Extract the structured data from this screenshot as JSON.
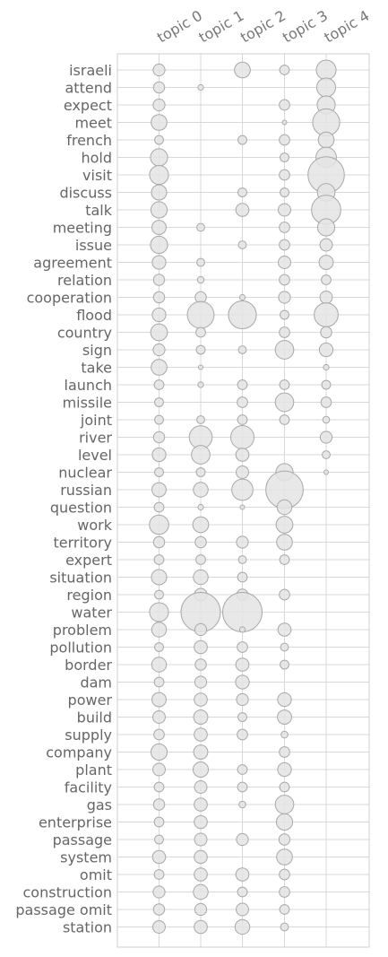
{
  "chart_data": {
    "type": "bubble-matrix",
    "topics": [
      "topic 0",
      "topic 1",
      "topic 2",
      "topic 3",
      "topic 4"
    ],
    "words": [
      "israeli",
      "attend",
      "expect",
      "meet",
      "french",
      "hold",
      "visit",
      "discuss",
      "talk",
      "meeting",
      "issue",
      "agreement",
      "relation",
      "cooperation",
      "flood",
      "country",
      "sign",
      "take",
      "launch",
      "missile",
      "joint",
      "river",
      "level",
      "nuclear",
      "russian",
      "question",
      "work",
      "territory",
      "expert",
      "situation",
      "region",
      "water",
      "problem",
      "pollution",
      "border",
      "dam",
      "power",
      "build",
      "supply",
      "company",
      "plant",
      "facility",
      "gas",
      "enterprise",
      "passage",
      "system",
      "omit",
      "construction",
      "passage omit",
      "station"
    ],
    "grid": true,
    "values": [
      [
        0.09,
        0,
        0.16,
        0.06,
        0.25
      ],
      [
        0.08,
        0.02,
        0,
        0,
        0.23
      ],
      [
        0.09,
        0,
        0,
        0.07,
        0.21
      ],
      [
        0.16,
        0,
        0,
        0.01,
        0.47
      ],
      [
        0.05,
        0,
        0.05,
        0.07,
        0.16
      ],
      [
        0.19,
        0,
        0,
        0.05,
        0.27
      ],
      [
        0.23,
        0,
        0,
        0.07,
        0.85
      ],
      [
        0.15,
        0,
        0.05,
        0.05,
        0.2
      ],
      [
        0.17,
        0,
        0.11,
        0.1,
        0.55
      ],
      [
        0.13,
        0.04,
        0,
        0.07,
        0.19
      ],
      [
        0.19,
        0,
        0.04,
        0.07,
        0.1
      ],
      [
        0.12,
        0.04,
        0,
        0.1,
        0.13
      ],
      [
        0.08,
        0.03,
        0,
        0.07,
        0.06
      ],
      [
        0.08,
        0.08,
        0.02,
        0.09,
        0.1
      ],
      [
        0.12,
        0.46,
        0.5,
        0.05,
        0.37
      ],
      [
        0.18,
        0.06,
        0,
        0.07,
        0.08
      ],
      [
        0.09,
        0.05,
        0.04,
        0.22,
        0.12
      ],
      [
        0.16,
        0.01,
        0,
        0,
        0.02
      ],
      [
        0.06,
        0.02,
        0.06,
        0.06,
        0.05
      ],
      [
        0.05,
        0,
        0.07,
        0.22,
        0.07
      ],
      [
        0.05,
        0.04,
        0.06,
        0.06,
        0.03
      ],
      [
        0.08,
        0.34,
        0.35,
        0,
        0.09
      ],
      [
        0.12,
        0.22,
        0.11,
        0,
        0.04
      ],
      [
        0.05,
        0.05,
        0.1,
        0.19,
        0.005
      ],
      [
        0.13,
        0.14,
        0.29,
        0.9,
        0
      ],
      [
        0.06,
        0.02,
        0.005,
        0.14,
        0
      ],
      [
        0.24,
        0.16,
        0,
        0.18,
        0
      ],
      [
        0.08,
        0.08,
        0.09,
        0.16,
        0
      ],
      [
        0.06,
        0.06,
        0.04,
        0.06,
        0
      ],
      [
        0.15,
        0.14,
        0.06,
        0,
        0
      ],
      [
        0.05,
        0.1,
        0.08,
        0.07,
        0
      ],
      [
        0.23,
        1.0,
        1.0,
        0,
        0
      ],
      [
        0.14,
        0.09,
        0.02,
        0.11,
        0
      ],
      [
        0.05,
        0.11,
        0.07,
        0.04,
        0
      ],
      [
        0.14,
        0.08,
        0.11,
        0.05,
        0
      ],
      [
        0.06,
        0.09,
        0.12,
        0,
        0
      ],
      [
        0.13,
        0.11,
        0.09,
        0.12,
        0
      ],
      [
        0.1,
        0.13,
        0.05,
        0.13,
        0
      ],
      [
        0.07,
        0.11,
        0.07,
        0.03,
        0
      ],
      [
        0.17,
        0.13,
        0,
        0.07,
        0
      ],
      [
        0.1,
        0.15,
        0.06,
        0.12,
        0
      ],
      [
        0.06,
        0.1,
        0.06,
        0.06,
        0
      ],
      [
        0.08,
        0.11,
        0.03,
        0.22,
        0
      ],
      [
        0.06,
        0.11,
        0,
        0.17,
        0
      ],
      [
        0.05,
        0.1,
        0.09,
        0.08,
        0
      ],
      [
        0.11,
        0.11,
        0,
        0.16,
        0
      ],
      [
        0.06,
        0.11,
        0.11,
        0.07,
        0
      ],
      [
        0.09,
        0.14,
        0.06,
        0.07,
        0
      ],
      [
        0.08,
        0.09,
        0.1,
        0.06,
        0
      ],
      [
        0.1,
        0.11,
        0.14,
        0.04,
        0
      ]
    ]
  }
}
